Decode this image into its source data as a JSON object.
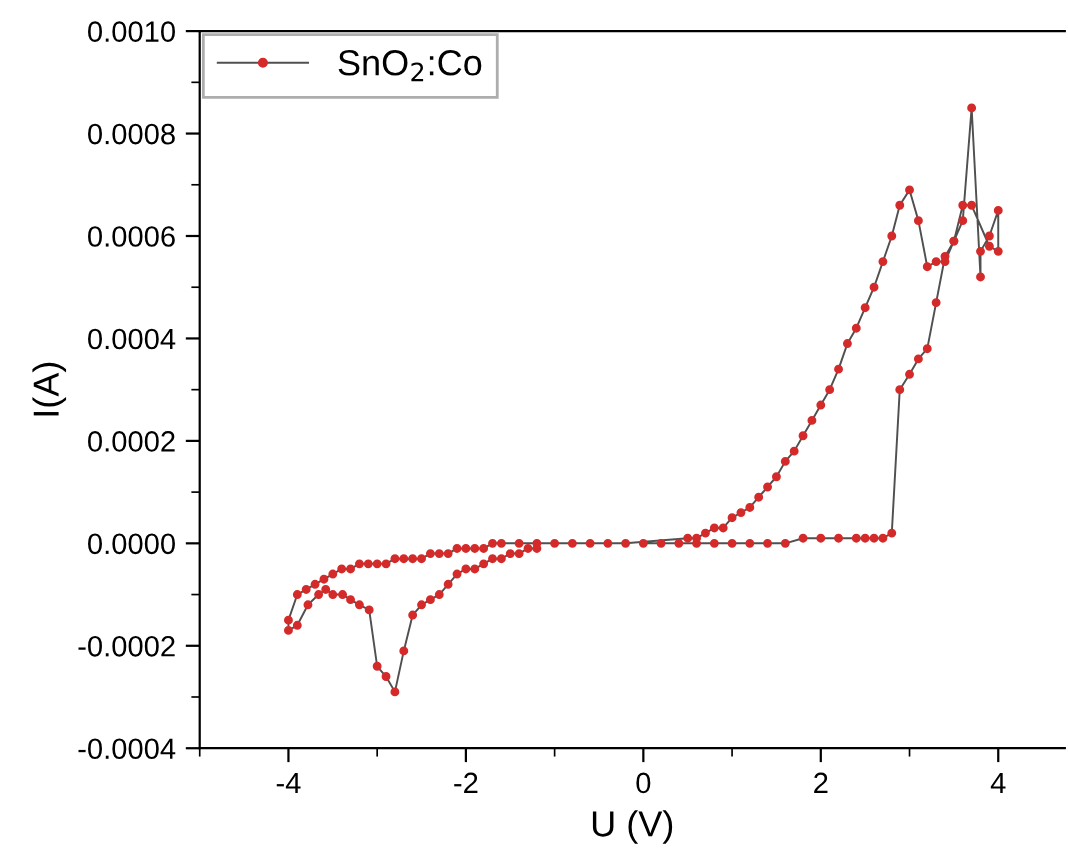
{
  "chart_data": {
    "type": "line",
    "xlabel": "U (V)",
    "ylabel": "I(A)",
    "xlim": [
      -5,
      4.75
    ],
    "ylim": [
      -0.0004,
      0.001
    ],
    "xticks": [
      -4,
      -2,
      0,
      2,
      4
    ],
    "yticks": [
      {
        "value": -0.0004,
        "label": "-0.0004"
      },
      {
        "value": -0.0002,
        "label": "-0.0002"
      },
      {
        "value": 0,
        "label": "0.0000"
      },
      {
        "value": 0.0002,
        "label": "0.0002"
      },
      {
        "value": 0.0004,
        "label": "0.0004"
      },
      {
        "value": 0.0006,
        "label": "0.0006"
      },
      {
        "value": 0.0008,
        "label": "0.0008"
      },
      {
        "value": 0.001,
        "label": "0.0010"
      }
    ],
    "grid": false,
    "legend": "top left",
    "marker": "circle",
    "line_style": "solid",
    "series": [
      {
        "name": "SnO$_{2}$:Co",
        "color": "#d42a2a",
        "x": [
          0,
          0.2,
          0.4,
          0.6,
          0.8,
          1.0,
          1.2,
          1.4,
          1.6,
          1.8,
          2.0,
          2.2,
          2.4,
          2.5,
          2.6,
          2.7,
          2.8,
          2.89,
          3.0,
          3.1,
          3.2,
          3.3,
          3.4,
          3.5,
          3.6,
          3.7,
          3.8,
          3.8,
          3.9,
          4.0,
          4.0,
          3.9,
          3.7,
          3.6,
          3.5,
          3.4,
          3.3,
          3.2,
          3.1,
          3.0,
          2.89,
          2.8,
          2.7,
          2.6,
          2.5,
          2.4,
          2.3,
          2.2,
          2.1,
          2.0,
          1.9,
          1.8,
          1.7,
          1.6,
          1.5,
          1.4,
          1.3,
          1.2,
          1.1,
          1.0,
          0.9,
          0.8,
          0.7,
          0.6,
          0.5,
          -0.2,
          -0.4,
          -0.6,
          -0.8,
          -1.0,
          -1.2,
          -1.4,
          -1.6,
          -1.7,
          -1.8,
          -1.9,
          -2.0,
          -2.1,
          -2.2,
          -2.3,
          -2.4,
          -2.5,
          -2.6,
          -2.7,
          -2.8,
          -2.9,
          -3.0,
          -3.1,
          -3.2,
          -3.3,
          -3.4,
          -3.5,
          -3.6,
          -3.7,
          -3.8,
          -3.9,
          -4.0,
          -4.0,
          -3.9,
          -3.78,
          -3.66,
          -3.58,
          -3.5,
          -3.39,
          -3.3,
          -3.2,
          -3.09,
          -3.0,
          -2.9,
          -2.8,
          -2.7,
          -2.6,
          -2.5,
          -2.4,
          -2.3,
          -2.2,
          -2.1,
          -2.0,
          -1.9,
          -1.8,
          -1.7,
          -1.6,
          -1.5,
          -1.4,
          -1.3,
          -1.2
        ],
        "values": [
          0,
          0,
          0,
          0,
          0,
          0,
          0,
          0,
          0,
          1e-05,
          1e-05,
          1e-05,
          1e-05,
          1e-05,
          1e-05,
          1e-05,
          2e-05,
          0.0003,
          0.00033,
          0.00036,
          0.00038,
          0.00047,
          0.00056,
          0.00059,
          0.00063,
          0.00085,
          0.00052,
          0.00057,
          0.0006,
          0.00065,
          0.00057,
          0.00058,
          0.00066,
          0.00066,
          0.00059,
          0.00055,
          0.00055,
          0.00054,
          0.00063,
          0.00069,
          0.00066,
          0.0006,
          0.00055,
          0.0005,
          0.00046,
          0.00042,
          0.00039,
          0.00034,
          0.0003,
          0.00027,
          0.00024,
          0.00021,
          0.00018,
          0.00016,
          0.00013,
          0.00011,
          9e-05,
          7e-05,
          6e-05,
          5e-05,
          3e-05,
          3e-05,
          2e-05,
          1e-05,
          1e-05,
          0,
          0,
          0,
          0,
          0,
          0,
          0,
          0,
          0,
          -1e-05,
          -1e-05,
          -1e-05,
          -1e-05,
          -2e-05,
          -2e-05,
          -2e-05,
          -3e-05,
          -3e-05,
          -3e-05,
          -3e-05,
          -4e-05,
          -4e-05,
          -4e-05,
          -4e-05,
          -5e-05,
          -5e-05,
          -6e-05,
          -7e-05,
          -8e-05,
          -9e-05,
          -0.0001,
          -0.00015,
          -0.00017,
          -0.00016,
          -0.00012,
          -0.0001,
          -9e-05,
          -0.0001,
          -0.0001,
          -0.00011,
          -0.00012,
          -0.00013,
          -0.00024,
          -0.00026,
          -0.00029,
          -0.00021,
          -0.00014,
          -0.00012,
          -0.00011,
          -0.0001,
          -8e-05,
          -6e-05,
          -5e-05,
          -5e-05,
          -4e-05,
          -3e-05,
          -3e-05,
          -2e-05,
          -2e-05,
          -1e-05,
          -1e-05
        ]
      }
    ]
  }
}
